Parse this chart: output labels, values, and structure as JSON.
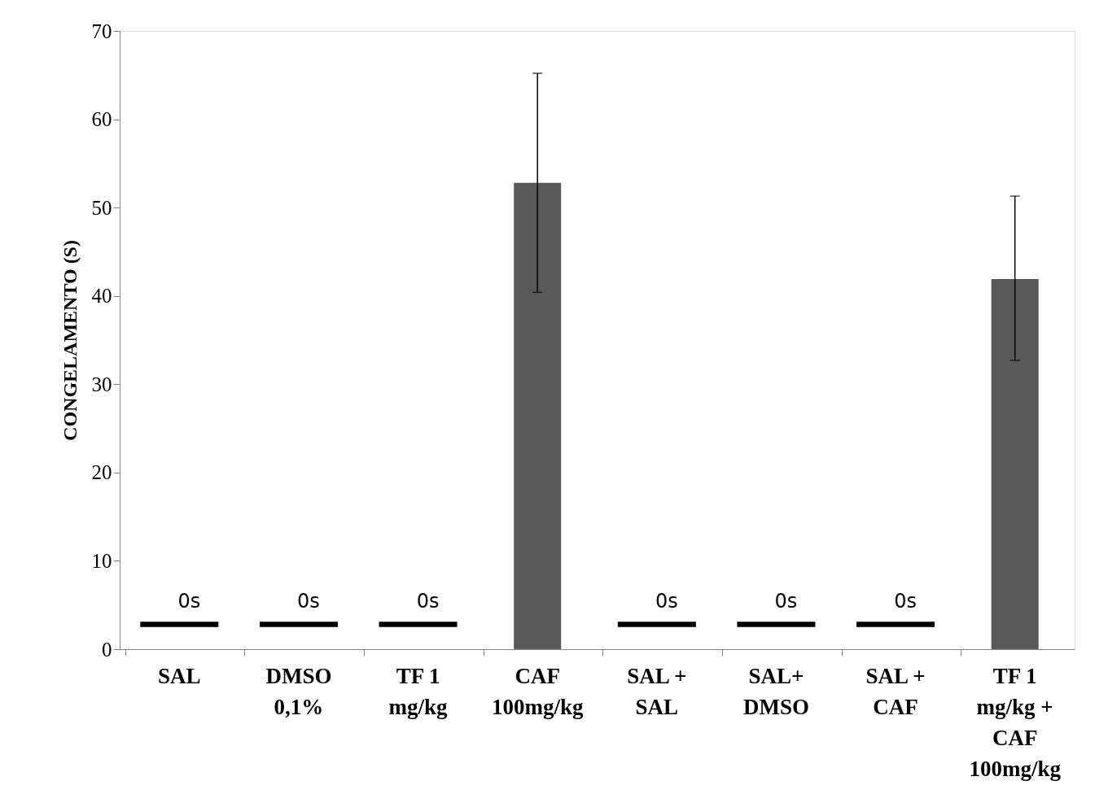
{
  "chart_data": {
    "type": "bar",
    "ylabel": "CONGELAMENTO (S)",
    "categories": [
      "SAL",
      "DMSO 0,1%",
      "TF 1 mg/kg",
      "CAF 100mg/kg",
      "SAL + SAL",
      "SAL+ DMSO",
      "SAL + CAF",
      "TF 1 mg/kg + CAF 100mg/kg"
    ],
    "values": [
      0,
      0,
      0,
      52.8,
      0,
      0,
      0,
      41.9
    ],
    "errors": [
      null,
      null,
      null,
      [
        40.4,
        65.2
      ],
      null,
      null,
      null,
      [
        32.7,
        51.3
      ]
    ],
    "annotations": [
      {
        "text": "0s",
        "x": "SAL",
        "y": 2.8
      },
      {
        "text": "0s",
        "x": "DMSO 0,1%",
        "y": 2.8
      },
      {
        "text": "0s",
        "x": "TF 1 mg/kg",
        "y": 2.8
      },
      {
        "text": "0s",
        "x": "SAL + SAL",
        "y": 2.8
      },
      {
        "text": "0s",
        "x": "SAL+ DMSO",
        "y": 2.8
      },
      {
        "text": "0s",
        "x": "SAL + CAF",
        "y": 2.8
      }
    ],
    "color": "#595959",
    "series": [
      {
        "type": "bar",
        "color": "#000000",
        "base": [
          2.5,
          2.5,
          2.5,
          null,
          2.5,
          2.5,
          2.5,
          null
        ],
        "values": [
          0.6,
          0.6,
          0.6,
          null,
          0.6,
          0.6,
          0.6,
          null
        ]
      }
    ],
    "ylim": [
      0,
      70
    ],
    "yticks": [
      0,
      10,
      20,
      30,
      40,
      50,
      60,
      70
    ],
    "grid": false
  }
}
